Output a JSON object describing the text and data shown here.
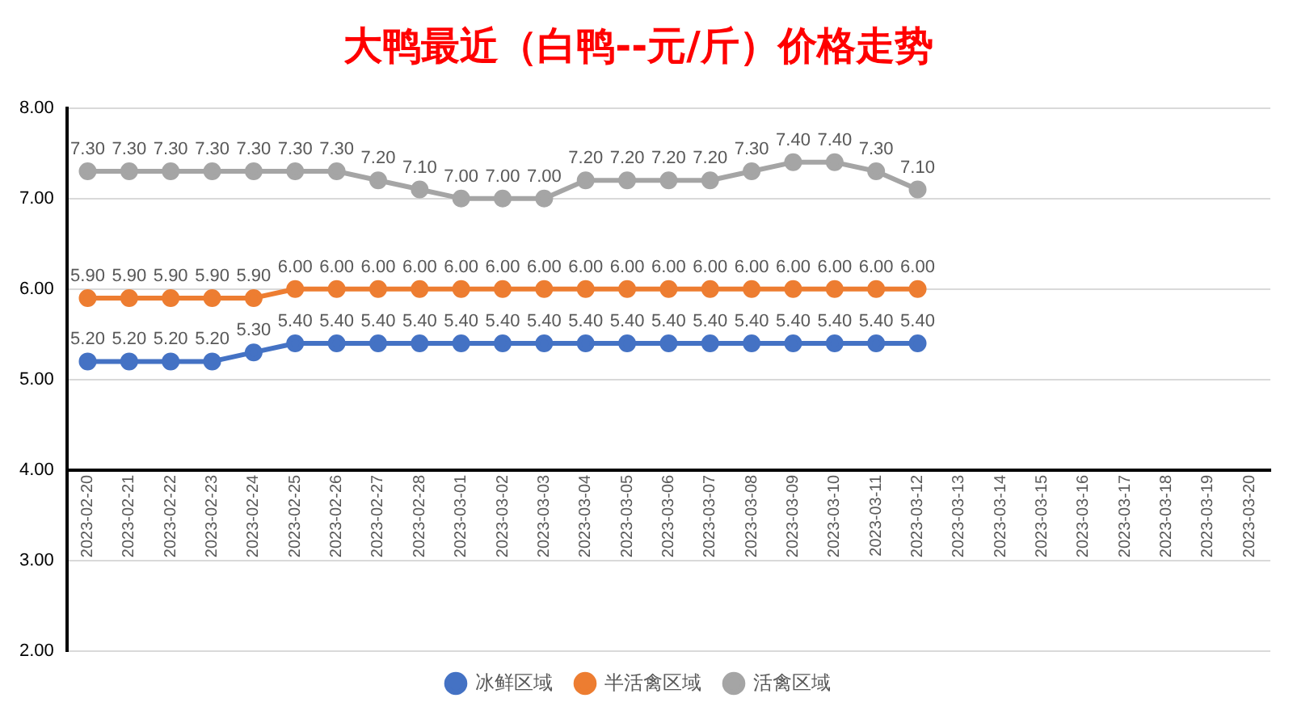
{
  "chart_data": {
    "type": "line",
    "title": "大鸭最近（白鸭--元/斤）价格走势",
    "categories": [
      "2023-02-20",
      "2023-02-21",
      "2023-02-22",
      "2023-02-23",
      "2023-02-24",
      "2023-02-25",
      "2023-02-26",
      "2023-02-27",
      "2023-02-28",
      "2023-03-01",
      "2023-03-02",
      "2023-03-03",
      "2023-03-04",
      "2023-03-05",
      "2023-03-06",
      "2023-03-07",
      "2023-03-08",
      "2023-03-09",
      "2023-03-10",
      "2023-03-11",
      "2023-03-12",
      "2023-03-13",
      "2023-03-14",
      "2023-03-15",
      "2023-03-16",
      "2023-03-17",
      "2023-03-18",
      "2023-03-19",
      "2023-03-20"
    ],
    "series": [
      {
        "name": "冰鲜区域",
        "color": "#4472c4",
        "values": [
          5.2,
          5.2,
          5.2,
          5.2,
          5.3,
          5.4,
          5.4,
          5.4,
          5.4,
          5.4,
          5.4,
          5.4,
          5.4,
          5.4,
          5.4,
          5.4,
          5.4,
          5.4,
          5.4,
          5.4,
          5.4,
          null,
          null,
          null,
          null,
          null,
          null,
          null,
          null
        ],
        "value_labels": [
          "5.20",
          "5.20",
          "5.20",
          "5.20",
          "5.30",
          "5.40",
          "5.40",
          "5.40",
          "5.40",
          "5.40",
          "5.40",
          "5.40",
          "5.40",
          "5.40",
          "5.40",
          "5.40",
          "5.40",
          "5.40",
          "5.40",
          "5.40",
          "5.40",
          null,
          null,
          null,
          null,
          null,
          null,
          null,
          null
        ]
      },
      {
        "name": "半活禽区域",
        "color": "#ed7d31",
        "values": [
          5.9,
          5.9,
          5.9,
          5.9,
          5.9,
          6.0,
          6.0,
          6.0,
          6.0,
          6.0,
          6.0,
          6.0,
          6.0,
          6.0,
          6.0,
          6.0,
          6.0,
          6.0,
          6.0,
          6.0,
          6.0,
          null,
          null,
          null,
          null,
          null,
          null,
          null,
          null
        ],
        "value_labels": [
          "5.90",
          "5.90",
          "5.90",
          "5.90",
          "5.90",
          "6.00",
          "6.00",
          "6.00",
          "6.00",
          "6.00",
          "6.00",
          "6.00",
          "6.00",
          "6.00",
          "6.00",
          "6.00",
          "6.00",
          "6.00",
          "6.00",
          "6.00",
          "6.00",
          null,
          null,
          null,
          null,
          null,
          null,
          null,
          null
        ]
      },
      {
        "name": "活禽区域",
        "color": "#a5a5a5",
        "values": [
          7.3,
          7.3,
          7.3,
          7.3,
          7.3,
          7.3,
          7.3,
          7.2,
          7.1,
          7.0,
          7.0,
          7.0,
          7.2,
          7.2,
          7.2,
          7.2,
          7.3,
          7.4,
          7.4,
          7.3,
          7.1,
          null,
          null,
          null,
          null,
          null,
          null,
          null,
          null
        ],
        "value_labels": [
          "7.30",
          "7.30",
          "7.30",
          "7.30",
          "7.30",
          "7.30",
          "7.30",
          "7.20",
          "7.10",
          "7.00",
          "7.00",
          "7.00",
          "7.20",
          "7.20",
          "7.20",
          "7.20",
          "7.30",
          "7.40",
          "7.40",
          "7.30",
          "7.10",
          null,
          null,
          null,
          null,
          null,
          null,
          null,
          null
        ]
      }
    ],
    "ylim": [
      2,
      8
    ],
    "yticks": [
      {
        "value": 2,
        "label": "2.00"
      },
      {
        "value": 3,
        "label": "3.00"
      },
      {
        "value": 4,
        "label": "4.00"
      },
      {
        "value": 5,
        "label": "5.00"
      },
      {
        "value": 6,
        "label": "6.00"
      },
      {
        "value": 7,
        "label": "7.00"
      },
      {
        "value": 8,
        "label": "8.00"
      }
    ],
    "grid": "y",
    "legend": "bottom",
    "marker": "circle",
    "line_style": "solid"
  }
}
